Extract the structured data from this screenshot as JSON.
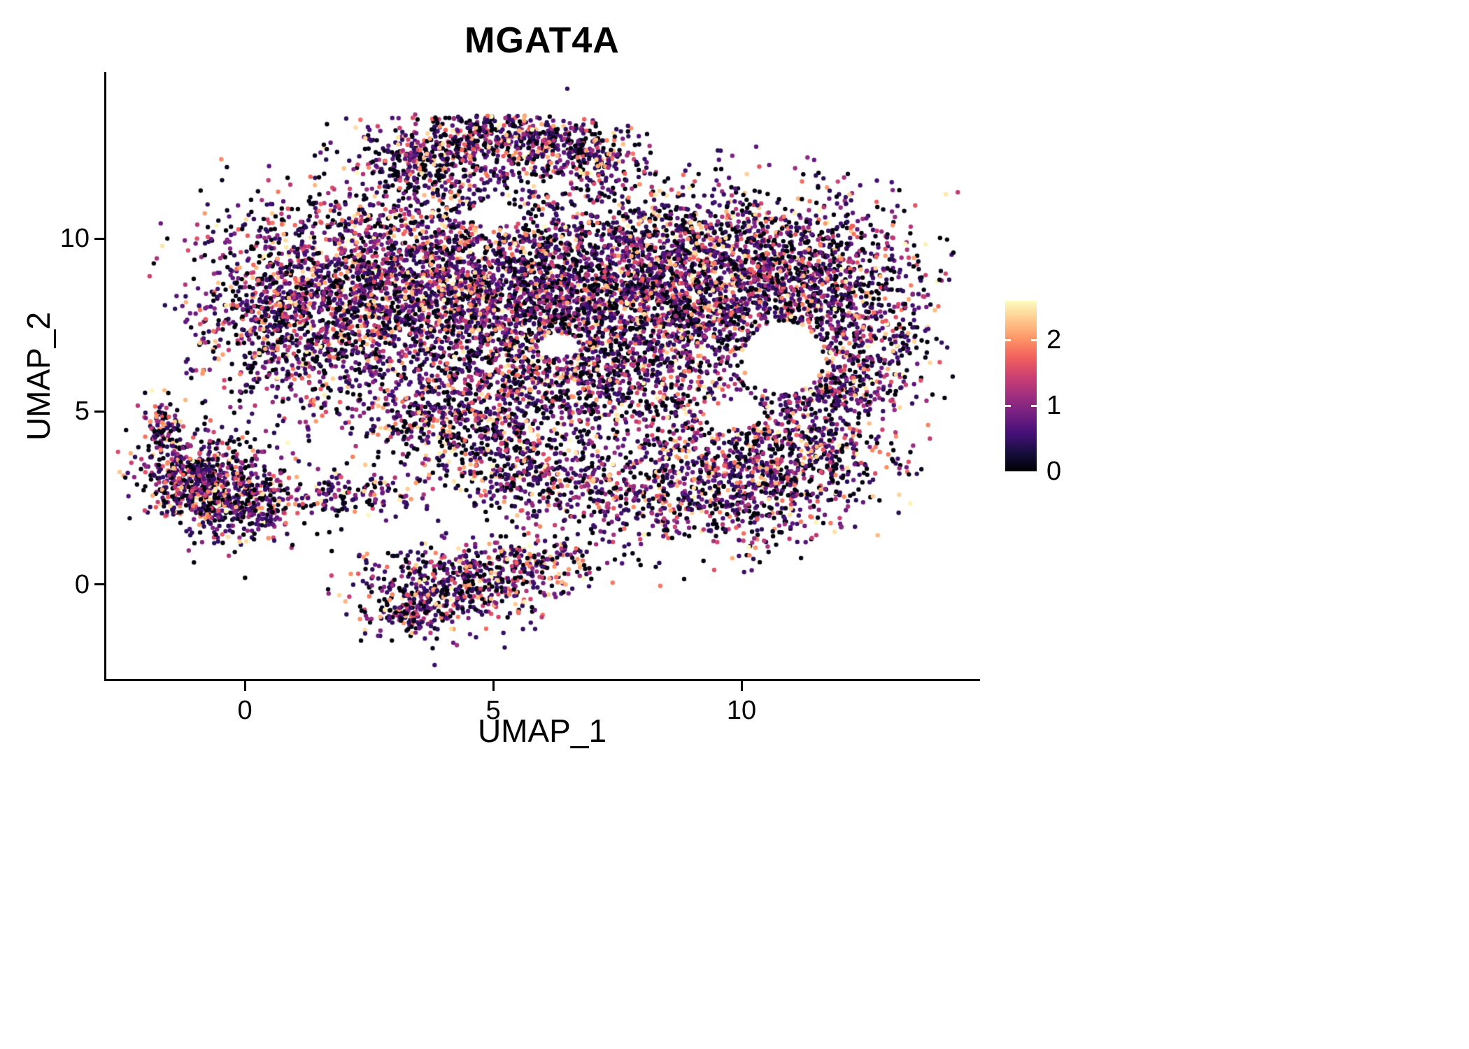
{
  "title": "MGAT4A",
  "x_axis": {
    "label": "UMAP_1",
    "ticks": [
      "0",
      "5",
      "10"
    ]
  },
  "y_axis": {
    "label": "UMAP_2",
    "ticks": [
      "10",
      "5",
      "0"
    ]
  },
  "legend": {
    "ticks": [
      "2",
      "1",
      "0"
    ],
    "min": 0,
    "max": 2.6
  },
  "colors": {
    "background": "#FFFFFF",
    "axis": "#000000",
    "text": "#000000",
    "legend_tick": "#FFFFFF",
    "palette": [
      "#000004",
      "#180F3E",
      "#451077",
      "#721F81",
      "#9F2F7F",
      "#CD4071",
      "#F1605D",
      "#FD9567",
      "#FEC98D",
      "#FCFDBF"
    ]
  },
  "chart_data": {
    "type": "scatter",
    "title": "MGAT4A",
    "xlabel": "UMAP_1",
    "ylabel": "UMAP_2",
    "xlim": [
      -2.79,
      14.76
    ],
    "ylim": [
      -2.73,
      14.77
    ],
    "x_ticks": [
      0,
      5,
      10
    ],
    "y_ticks": [
      0,
      5,
      10
    ],
    "grid": false,
    "legend_position": "right",
    "color_scale": {
      "name": "magma",
      "min": 0,
      "max": 2.6,
      "ticks": [
        2,
        1,
        0
      ]
    },
    "point_radius_px": 3.2,
    "seed": 20240607,
    "expression": {
      "zero_fraction": 0.3,
      "zero_band": 0.14,
      "base": 0.4,
      "span": 2.2,
      "shape": 2.1
    },
    "clusters": [
      {
        "cx": 2.5,
        "cy": 8.6,
        "sx": 1.6,
        "sy": 1.5,
        "n": 1800
      },
      {
        "cx": 5.5,
        "cy": 8.4,
        "sx": 1.7,
        "sy": 1.6,
        "n": 2100
      },
      {
        "cx": 8.4,
        "cy": 8.6,
        "sx": 1.5,
        "sy": 1.5,
        "n": 2000
      },
      {
        "cx": 11.0,
        "cy": 9.0,
        "sx": 1.25,
        "sy": 1.15,
        "n": 1100
      },
      {
        "cx": 12.4,
        "cy": 7.2,
        "sx": 0.75,
        "sy": 1.3,
        "n": 450
      },
      {
        "cx": 0.7,
        "cy": 7.6,
        "sx": 0.85,
        "sy": 1.25,
        "n": 550
      },
      {
        "cx": 6.5,
        "cy": 5.6,
        "sx": 2.0,
        "sy": 0.85,
        "n": 850
      },
      {
        "cx": 11.6,
        "cy": 5.6,
        "sx": 0.7,
        "sy": 0.5,
        "n": 220
      },
      {
        "cx": 9.6,
        "cy": 3.0,
        "sx": 1.25,
        "sy": 1.05,
        "n": 850
      },
      {
        "cx": 11.3,
        "cy": 3.8,
        "sx": 0.85,
        "sy": 0.85,
        "n": 450
      },
      {
        "cx": 3.6,
        "cy": 12.1,
        "sx": 0.8,
        "sy": 0.5,
        "n": 320,
        "ymax": 13.55
      },
      {
        "cx": 5.3,
        "cy": 12.9,
        "sx": 1.15,
        "sy": 0.45,
        "n": 520,
        "ymax": 13.55
      },
      {
        "cx": 6.9,
        "cy": 12.4,
        "sx": 0.55,
        "sy": 0.4,
        "n": 160,
        "ymax": 13.55
      },
      {
        "cx": -0.9,
        "cy": 3.2,
        "sx": 0.65,
        "sy": 0.6,
        "n": 520
      },
      {
        "cx": -0.1,
        "cy": 2.3,
        "sx": 0.75,
        "sy": 0.55,
        "n": 430
      },
      {
        "cx": -1.7,
        "cy": 4.6,
        "sx": 0.2,
        "sy": 0.4,
        "n": 90
      },
      {
        "cx": 2.3,
        "cy": 2.6,
        "sx": 0.8,
        "sy": 0.35,
        "n": 140
      },
      {
        "cx": 5.6,
        "cy": 3.2,
        "sx": 0.8,
        "sy": 0.6,
        "n": 320
      },
      {
        "cx": 4.3,
        "cy": 4.4,
        "sx": 0.9,
        "sy": 0.55,
        "n": 220
      },
      {
        "cx": 3.2,
        "cy": 4.8,
        "sx": 1.0,
        "sy": 0.5,
        "n": 110
      },
      {
        "cx": 7.2,
        "cy": 2.6,
        "sx": 0.8,
        "sy": 0.6,
        "n": 170
      },
      {
        "cx": 4.2,
        "cy": 0.0,
        "sx": 1.0,
        "sy": 0.55,
        "n": 480
      },
      {
        "cx": 5.8,
        "cy": 0.6,
        "sx": 0.7,
        "sy": 0.4,
        "n": 190
      },
      {
        "cx": 3.4,
        "cy": -0.8,
        "sx": 0.4,
        "sy": 0.4,
        "n": 140
      }
    ],
    "holes": [
      {
        "cx": 10.85,
        "cy": 6.55,
        "rx": 0.8,
        "ry": 1.05
      },
      {
        "cx": 5.0,
        "cy": 10.7,
        "rx": 0.5,
        "ry": 0.4
      },
      {
        "cx": 6.3,
        "cy": 6.9,
        "rx": 0.4,
        "ry": 0.35
      },
      {
        "cx": 9.9,
        "cy": 4.9,
        "rx": 0.55,
        "ry": 0.4
      }
    ]
  }
}
